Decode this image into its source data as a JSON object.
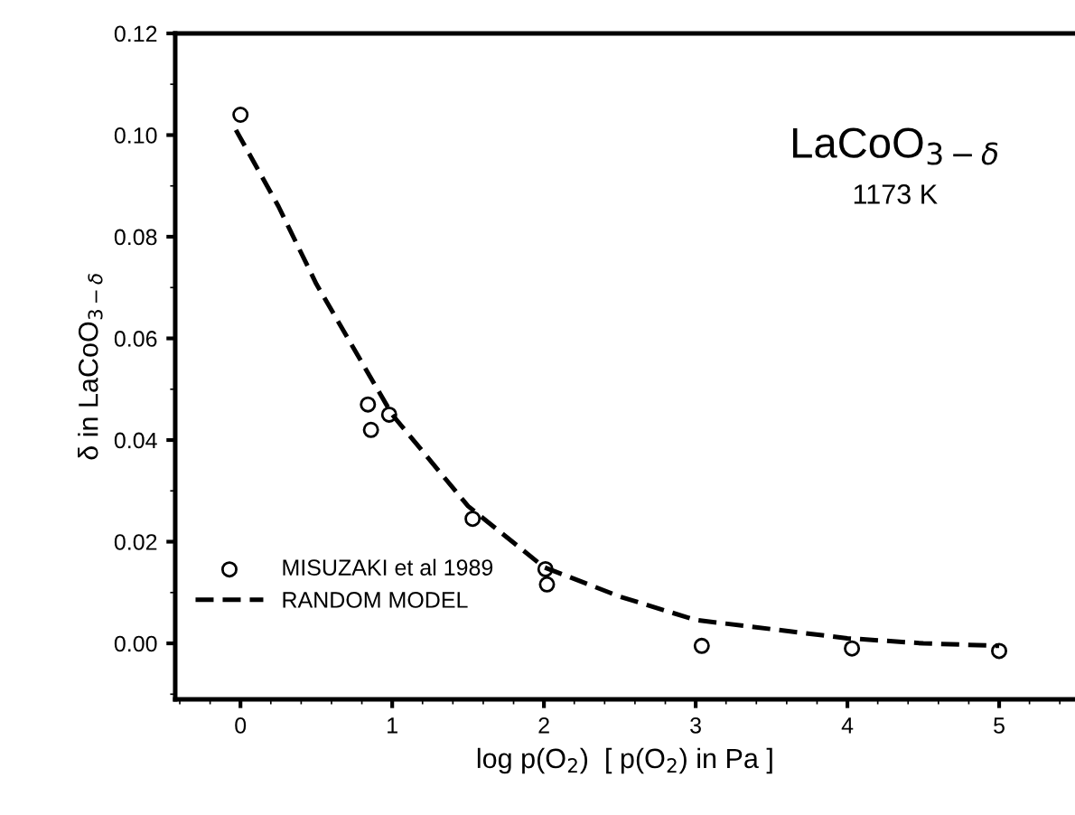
{
  "chart_data": {
    "type": "scatter",
    "xlabel": "log p(O$_{2}$)  [ p(O$_{2}$) in Pa ]",
    "ylabel": "δ in LaCoO$_{3−δ}$",
    "annotations": [
      "LaCoO$_{3−δ}$",
      "1173 K"
    ],
    "series": [
      {
        "name": "MISUZAKI et al 1989",
        "marker": "circle",
        "color": "#000000",
        "x": [
          0.0,
          0.84,
          0.86,
          0.98,
          1.53,
          2.01,
          2.02,
          3.04,
          4.03,
          5.0
        ],
        "values": [
          0.104,
          0.047,
          0.042,
          0.045,
          0.0245,
          0.0146,
          0.0116,
          -0.0005,
          -0.001,
          -0.0015
        ]
      },
      {
        "name": "RANDOM MODEL",
        "type": "line",
        "line_style": "dashed",
        "color": "#000000",
        "x": [
          -0.03,
          0.25,
          0.5,
          1.0,
          1.5,
          2.0,
          2.5,
          3.0,
          3.5,
          4.0,
          4.5,
          5.0
        ],
        "values": [
          0.101,
          0.086,
          0.0707,
          0.045,
          0.027,
          0.015,
          0.0092,
          0.0046,
          0.0028,
          0.001,
          0.0,
          -0.0005
        ]
      }
    ],
    "xlim": [
      -0.43,
      5.5
    ],
    "ylim": [
      -0.011,
      0.12
    ],
    "xticks": [
      0,
      1,
      2,
      3,
      4,
      5
    ],
    "yticks": [
      {
        "value": 0.0,
        "label": "0.00"
      },
      {
        "value": 0.02,
        "label": "0.02"
      },
      {
        "value": 0.04,
        "label": "0.04"
      },
      {
        "value": 0.06,
        "label": "0.06"
      },
      {
        "value": 0.08,
        "label": "0.08"
      },
      {
        "value": 0.1,
        "label": "0.10"
      },
      {
        "value": 0.12,
        "label": "0.12"
      }
    ],
    "grid": false,
    "legend": "bottom left"
  }
}
